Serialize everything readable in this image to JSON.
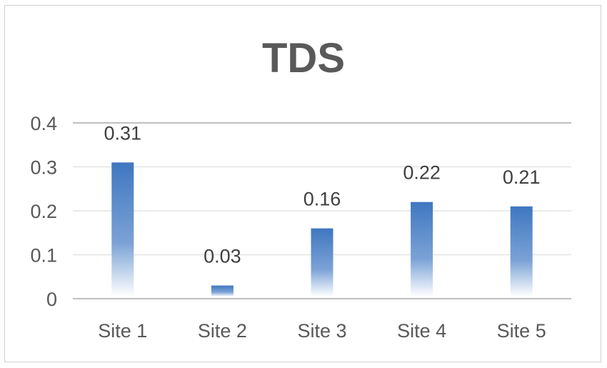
{
  "chart_data": {
    "type": "bar",
    "title": "TDS",
    "categories": [
      "Site 1",
      "Site 2",
      "Site 3",
      "Site 4",
      "Site 5"
    ],
    "values": [
      0.31,
      0.03,
      0.16,
      0.22,
      0.21
    ],
    "data_labels": [
      "0.31",
      "0.03",
      "0.16",
      "0.22",
      "0.21"
    ],
    "y_ticks": [
      "0",
      "0.1",
      "0.2",
      "0.3",
      "0.4"
    ],
    "ylim": [
      0,
      0.4
    ],
    "grid": true,
    "legend": "none",
    "bar_color": "#3f77c0"
  }
}
